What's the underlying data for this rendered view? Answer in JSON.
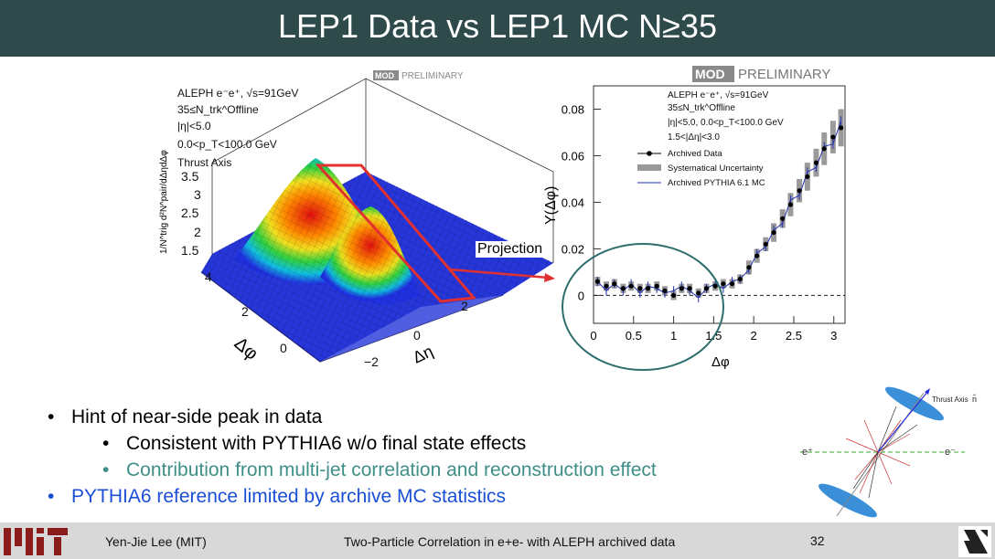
{
  "slide": {
    "title": "LEP1 Data vs LEP1 MC N≥35",
    "bullets": [
      {
        "text": "Hint of near-side peak in data",
        "level": 1
      },
      {
        "text": "Consistent with PYTHIA6 w/o final state effects",
        "level": 2
      },
      {
        "text": "Contribution from multi-jet correlation and reconstruction effect",
        "level": 2,
        "color": "#3f8f88"
      },
      {
        "text": "PYTHIA6 reference limited by archive MC statistics",
        "level": 1,
        "color": "#1a4fd6"
      }
    ],
    "footer": {
      "author": "Yen-Jie Lee (MIT)",
      "talk": "Two-Particle Correlation in e+e- with ALEPH archived data",
      "page": "32"
    },
    "projection_label": "Projection",
    "colors": {
      "title_bar": "#2e4a4a",
      "red": "#e03030",
      "circle": "#2e6e6e",
      "bullet_teal": "#3f8f88",
      "bullet_blue": "#1a4fd6"
    }
  },
  "chart_data": [
    {
      "type": "surface",
      "badge": "MOD PRELIMINARY",
      "legend_lines": [
        "ALEPH e⁻e⁺, √s=91GeV",
        "35≤N_trk^Offline",
        "|η|<5.0",
        "0.0<p_T<100.0 GeV",
        "Thrust Axis"
      ],
      "zlabel": "1/N^trig d²N^pair/dΔηdΔφ",
      "xlabel": "Δη",
      "ylabel": "Δφ",
      "z_ticks": [
        "3.5",
        "3",
        "2.5",
        "2",
        "1.5"
      ],
      "x_ticks": [
        "2",
        "0",
        "−2"
      ],
      "y_ticks": [
        "4",
        "2",
        "0"
      ]
    },
    {
      "type": "scatter",
      "badge": "MOD PRELIMINARY",
      "legend_lines": [
        "ALEPH e⁻e⁺, √s=91GeV",
        "35≤N_trk^Offline",
        "|η|<5.0, 0.0<p_T<100.0 GeV",
        "1.5<|Δη|<3.0"
      ],
      "legend": [
        "Archived Data",
        "Systematical Uncertainty",
        "Archived PYTHIA 6.1 MC"
      ],
      "xlabel": "Δφ",
      "ylabel": "Y(Δφ)",
      "xlim": [
        0,
        3.14
      ],
      "ylim": [
        -0.012,
        0.09
      ],
      "x_ticks": [
        0,
        0.5,
        1,
        1.5,
        2,
        2.5,
        3
      ],
      "y_ticks": [
        0,
        0.02,
        0.04,
        0.06,
        0.08
      ],
      "data_x": [
        0.05,
        0.16,
        0.26,
        0.37,
        0.47,
        0.58,
        0.68,
        0.79,
        0.89,
        1.0,
        1.1,
        1.2,
        1.31,
        1.41,
        1.52,
        1.62,
        1.73,
        1.83,
        1.94,
        2.04,
        2.15,
        2.25,
        2.36,
        2.46,
        2.57,
        2.67,
        2.78,
        2.88,
        2.99,
        3.09
      ],
      "data_y": [
        0.006,
        0.004,
        0.005,
        0.003,
        0.004,
        0.003,
        0.003,
        0.004,
        0.002,
        0.0,
        0.003,
        0.003,
        0.001,
        0.003,
        0.004,
        0.005,
        0.005,
        0.007,
        0.012,
        0.017,
        0.022,
        0.027,
        0.033,
        0.039,
        0.045,
        0.051,
        0.057,
        0.063,
        0.068,
        0.072
      ],
      "syst": [
        0.002,
        0.002,
        0.002,
        0.002,
        0.002,
        0.002,
        0.002,
        0.002,
        0.002,
        0.002,
        0.002,
        0.002,
        0.002,
        0.002,
        0.002,
        0.002,
        0.002,
        0.002,
        0.003,
        0.003,
        0.003,
        0.004,
        0.004,
        0.005,
        0.005,
        0.006,
        0.006,
        0.007,
        0.007,
        0.008
      ],
      "mc_y": [
        0.006,
        0.002,
        0.005,
        0.002,
        0.005,
        0.001,
        0.004,
        0.003,
        0.001,
        0.002,
        0.004,
        0.002,
        -0.001,
        0.003,
        0.005,
        0.003,
        0.006,
        0.007,
        0.011,
        0.018,
        0.021,
        0.028,
        0.031,
        0.041,
        0.043,
        0.053,
        0.055,
        0.064,
        0.065,
        0.075
      ],
      "zero_line": "dashed"
    }
  ],
  "side_diagram": {
    "thrust_label": "Thrust Axis",
    "n_label": "n̂",
    "e_plus": "e⁺",
    "e_minus": "e⁻"
  }
}
